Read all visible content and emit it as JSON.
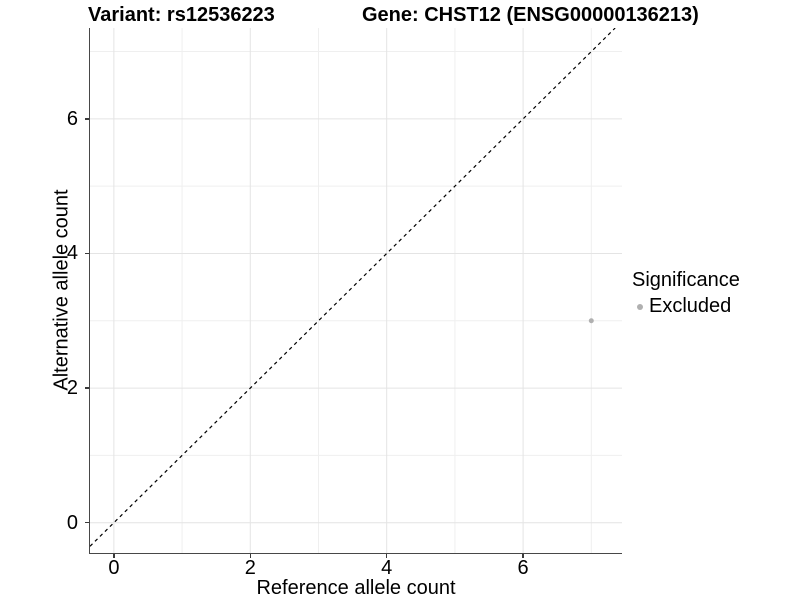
{
  "chart_data": {
    "type": "scatter",
    "titles": {
      "left": "Variant: rs12536223",
      "right": "Gene: CHST12 (ENSG00000136213)"
    },
    "xlabel": "Reference allele count",
    "ylabel": "Alternative allele count",
    "x_ticks": [
      0,
      2,
      4,
      6
    ],
    "y_ticks": [
      0,
      2,
      4,
      6
    ],
    "x_minor_gridlines": [
      1,
      3,
      5,
      7
    ],
    "y_minor_gridlines": [
      1,
      3,
      5,
      7
    ],
    "xlim": [
      -0.35,
      7.45
    ],
    "ylim": [
      -0.45,
      7.35
    ],
    "grid": "major+minor",
    "legend": {
      "title": "Significance",
      "position": "right"
    },
    "series": [
      {
        "name": "Excluded",
        "color": "#b0b0b0",
        "points": [
          {
            "x": 7,
            "y": 3
          }
        ]
      }
    ],
    "identity_line": {
      "style": "dashed",
      "slope": 1,
      "intercept": 0,
      "color": "#000000"
    }
  },
  "style": {
    "background": "#ffffff",
    "major_grid": "#e4e4e4",
    "minor_grid": "#efefef",
    "axis_line": "#474747",
    "tick_mark": "#3a3a3a",
    "text": "#000000"
  }
}
